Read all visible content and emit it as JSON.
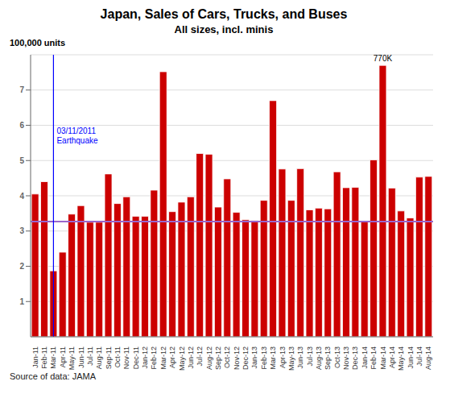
{
  "chart_data": {
    "type": "bar",
    "title": "Japan, Sales of Cars, Trucks, and Buses",
    "subtitle": "All sizes, incl. minis",
    "y_label": "100,000 units",
    "source": "Source of data: JAMA",
    "categories": [
      "Jan-11",
      "Feb-11",
      "Mar-11",
      "Apr-11",
      "May-11",
      "Jun-11",
      "Jul-11",
      "Aug-11",
      "Sep-11",
      "Oct-11",
      "Nov-11",
      "Dec-11",
      "Jan-12",
      "Feb-12",
      "Mar-12",
      "Apr-12",
      "May-12",
      "Jun-12",
      "Jul-12",
      "Aug-12",
      "Sep-12",
      "Oct-12",
      "Nov-12",
      "Dec-12",
      "Jan-13",
      "Feb-13",
      "Mar-13",
      "Apr-13",
      "May-13",
      "Jun-13",
      "Jul-13",
      "Aug-13",
      "Sep-13",
      "Oct-13",
      "Nov-13",
      "Dec-13",
      "Jan-14",
      "Feb-14",
      "Mar-14",
      "Apr-14",
      "May-14",
      "Jun-14",
      "Jul-14",
      "Aug-14"
    ],
    "values": [
      4.05,
      4.4,
      1.87,
      2.4,
      3.48,
      3.72,
      3.25,
      3.25,
      4.62,
      3.78,
      3.97,
      3.42,
      3.42,
      4.16,
      7.52,
      3.55,
      3.82,
      3.97,
      5.2,
      5.18,
      3.68,
      4.48,
      3.53,
      3.32,
      3.3,
      3.87,
      6.7,
      4.76,
      3.87,
      4.77,
      3.6,
      3.65,
      3.63,
      4.68,
      4.23,
      4.24,
      3.28,
      5.02,
      7.7,
      4.22,
      3.57,
      3.37,
      4.53,
      4.55
    ],
    "color": "#cc0000",
    "ylim": [
      0,
      8.0
    ],
    "yticks": [
      1,
      2,
      3,
      4,
      5,
      6,
      7
    ],
    "grid": true,
    "reference_lines": [
      {
        "value": 3.27,
        "color": "#9966cc"
      }
    ],
    "annotations": [
      {
        "type": "line",
        "text": "03/11/2011\nEarthquake",
        "category": "Mar-11",
        "color": "blue"
      },
      {
        "type": "text",
        "text": "770K",
        "category": "Mar-14"
      }
    ]
  }
}
